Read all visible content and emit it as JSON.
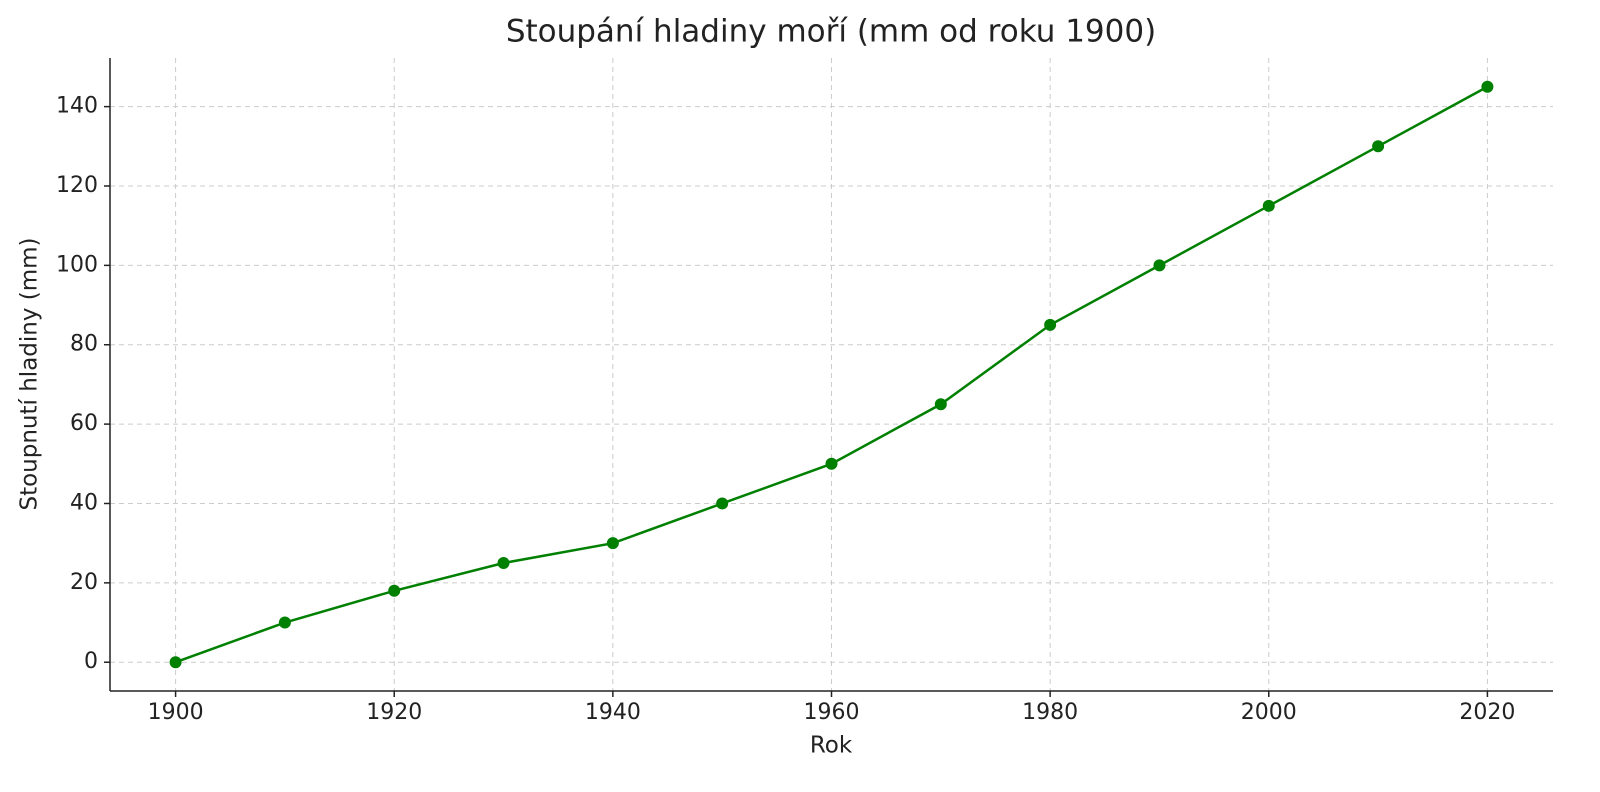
{
  "chart_data": {
    "type": "line",
    "title": "Stoupání hladiny moří (mm od roku 1900)",
    "x_label": "Rok",
    "y_label": "Stoupnutí hladiny (mm)",
    "x": [
      1900,
      1910,
      1920,
      1930,
      1940,
      1950,
      1960,
      1970,
      1980,
      1990,
      2000,
      2010,
      2020
    ],
    "series": [
      {
        "name": "Stoupnutí hladiny",
        "color": "#008000",
        "values": [
          0,
          10,
          18,
          25,
          30,
          40,
          50,
          65,
          85,
          100,
          115,
          130,
          145
        ]
      }
    ],
    "xlim": [
      1894,
      2026
    ],
    "xticks": [
      1900,
      1920,
      1940,
      1960,
      1980,
      2000,
      2020
    ],
    "ylim": [
      -7.25,
      152.25
    ],
    "yticks": [
      0,
      20,
      40,
      60,
      80,
      100,
      120,
      140
    ],
    "grid": true
  }
}
